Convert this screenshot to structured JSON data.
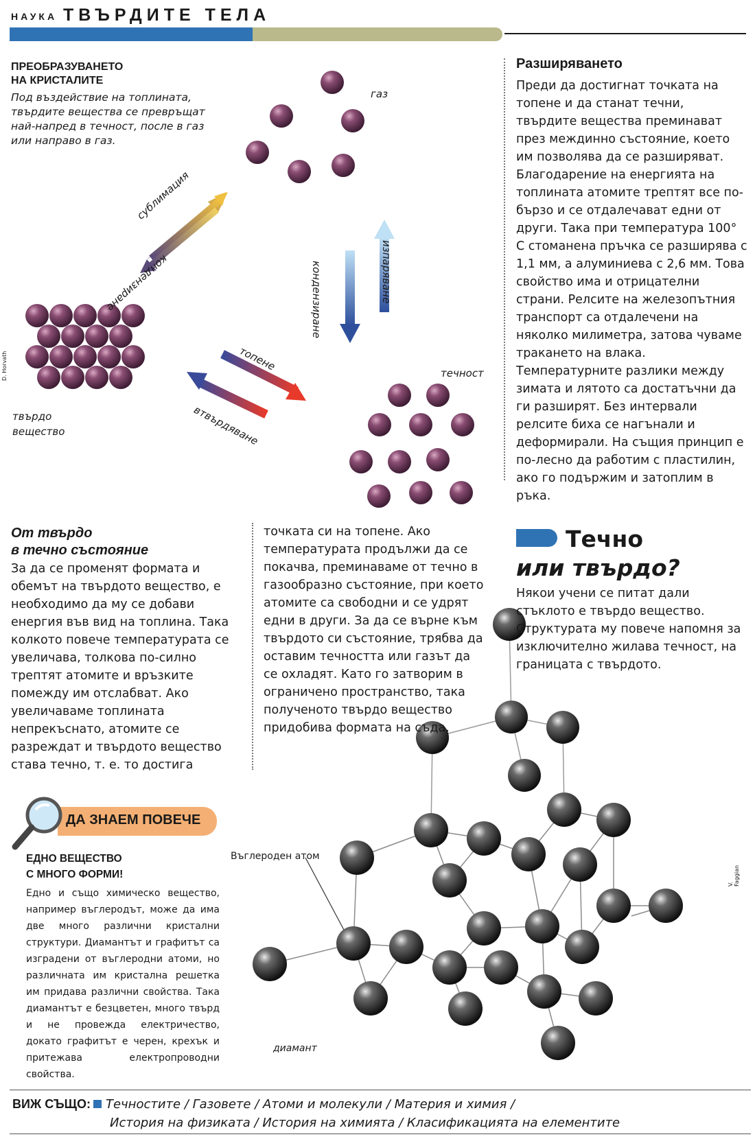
{
  "header": {
    "section": "НАУКА",
    "title": "ТВЪРДИТЕ ТЕЛА"
  },
  "transform": {
    "title_line1": "ПРЕОБРАЗУВАНЕТО",
    "title_line2": "НА КРИСТАЛИТЕ",
    "text": "Под въздействие на топлината, твърдите вещества се превръщат най-напред в течност, после в газ или направо в газ."
  },
  "diagram": {
    "gas_label": "газ",
    "liquid_label": "течност",
    "solid_label_line1": "твърдо",
    "solid_label_line2": "вещество",
    "arrow_sublimation": "сублимация",
    "arrow_condensation_solid": "кондензиране",
    "arrow_evaporation": "изпаряване",
    "arrow_condensation_liquid": "кондензиране",
    "arrow_melting": "топене",
    "arrow_solidification": "втвърдяване",
    "credit": "D. Horvath"
  },
  "solid_to_liquid": {
    "title_line1": "От твърдо",
    "title_line2": "в течно състояние",
    "text": "За да се променят формата и обемът на твърдото вещество, е необходимо да му се добави енергия във вид на топлина. Така колкото повече температурата се увеличава, толкова по-силно трептят атомите и връзките помежду им отслабват. Ако увеличаваме топлината непрекъснато, атомите се разреждат и твърдото вещество става течно, т. е. то достига",
    "text_cont": "точката си на топене. Ако температурата продължи да се покачва, преминаваме от течно в газообразно състояние, при което атомите са свободни и се удрят едни в други. За да се върне към твърдото си състояние, трябва да оставим течността или газът да се охладят. Като го затворим в ограничено пространство, така полученото твърдо вещество придобива формата на съда."
  },
  "expansion": {
    "title": "Разширяването",
    "text": "Преди да достигнат точката на топене и да станат течни, твърдите вещества преминават през междинно състояние, което им позволява да се разширяват. Благодарение на енергията на топлината атомите трептят все по-бързо и се отдалечават едни от други. Така при температура 100° С стоманена пръчка се разширява с 1,1 мм, а алуминиева с 2,6 мм. Това свойство има и отрицателни страни. Релсите на железопътния транспорт са отдалечени на няколко милиметра, затова чуваме тракането на влака. Температурните разлики между зимата и лятото са достатъчни да ги разширят. Без интервали релсите биха се нагънали и деформирали. На същия принцип е по-лесно да работим с пластилин, ако го подържим и затоплим в ръка."
  },
  "liquid_or_solid": {
    "title_line1": "Течно",
    "title_line2": "или твърдо?",
    "text": "Някои учени се питат дали стъклото е твърдо вещество. Структурата му повече напомня за изключително жилава течност, на границата с твърдото."
  },
  "learn_more": {
    "tab_label": "ДА ЗНАЕМ ПОВЕЧЕ",
    "title_line1": "ЕДНО ВЕЩЕСТВО",
    "title_line2": "С МНОГО ФОРМИ!",
    "text": "Едно и също химическо вещество, например въглеродът, може да има две много различни кристални структури. Диамантът и графитът са изградени от въглеродни атоми, но различната им кристална решетка им придава различни свойства. Така диамантът е безцветен, много твърд и не провежда електричество, докато графитът е черен, крехък и притежава електропроводни свойства.",
    "carbon_atom_label": "Въглероден атом",
    "diamond_label": "диамант",
    "credit": "V. Faggian"
  },
  "see_also": {
    "label": "ВИЖ СЪЩО:",
    "line1": "Течностите / Газовете / Атоми и молекули / Материя и химия /",
    "line2": "История на физиката / История на химията / Класификацията на елементите"
  },
  "colors": {
    "accent_blue": "#2f73b4",
    "olive": "#b9b98c",
    "tab_orange": "#f4b074",
    "box_peach": "#f9d9b6",
    "atom_purple": "#6e3d5c"
  }
}
